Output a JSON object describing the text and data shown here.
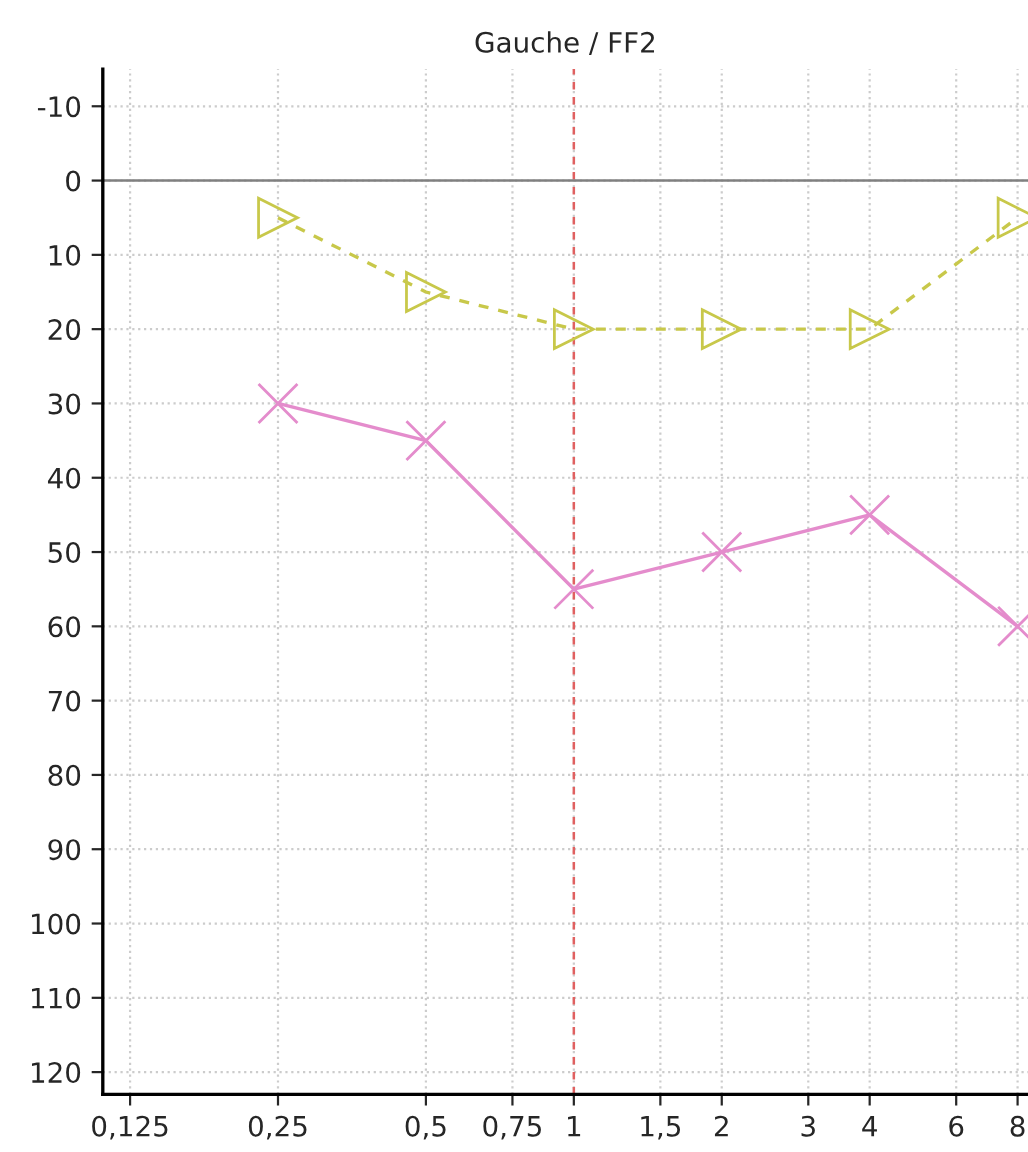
{
  "chart_data": {
    "type": "line",
    "title": "Gauche / FF2",
    "log": "x",
    "x": [
      0.25,
      0.5,
      1,
      2,
      4,
      8
    ],
    "series": [
      {
        "color": "#c8c84a",
        "values": [
          5,
          15,
          20,
          20,
          20,
          5
        ],
        "marker": "triangle",
        "line_style": "dashed"
      },
      {
        "color": "#e48ccc",
        "values": [
          30,
          35,
          55,
          50,
          45,
          60
        ],
        "marker": "cross",
        "line_style": "solid"
      }
    ],
    "xlim": [
      0.11,
      8.4
    ],
    "ylim": [
      123,
      -15
    ],
    "xticks": [
      {
        "value": 0.125,
        "label": "0,125"
      },
      {
        "value": 0.25,
        "label": "0,25"
      },
      {
        "value": 0.5,
        "label": "0,5"
      },
      {
        "value": 0.75,
        "label": "0,75"
      },
      1,
      {
        "value": 1.5,
        "label": "1,5"
      },
      2,
      3,
      4,
      6,
      8
    ],
    "yticks": [
      -10,
      0,
      10,
      20,
      30,
      40,
      50,
      60,
      70,
      80,
      90,
      100,
      110,
      120
    ],
    "ref_lines": [
      {
        "axis": "x",
        "value": 1,
        "color": "#e06060",
        "line_style": "dashed"
      },
      {
        "axis": "y",
        "value": 0,
        "color": "#808080",
        "line_style": "solid"
      }
    ],
    "grid": true,
    "legend": false
  }
}
